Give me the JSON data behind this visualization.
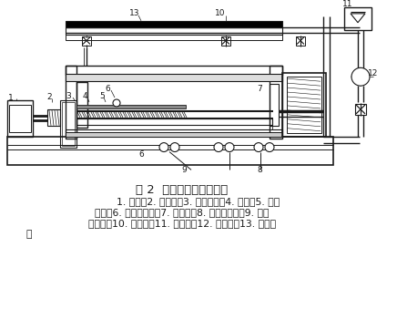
{
  "title": "图 2  动态校准装置结构图",
  "caption_line1": "1. 电机；2. 联轴器；3. 滚珠丝杠；4. 光栏；5. 滚珠",
  "caption_line2": "导轨；6. 温度传感器；7. 计量缸；8. 压力传感器；9. 压力",
  "caption_line3": "继电器；10. 流量计；11. 储油罐；12. 过滤器；13. 顶针机",
  "caption_line4": "构",
  "bg_color": "#ffffff",
  "line_color": "#1a1a1a",
  "text_color": "#1a1a1a"
}
